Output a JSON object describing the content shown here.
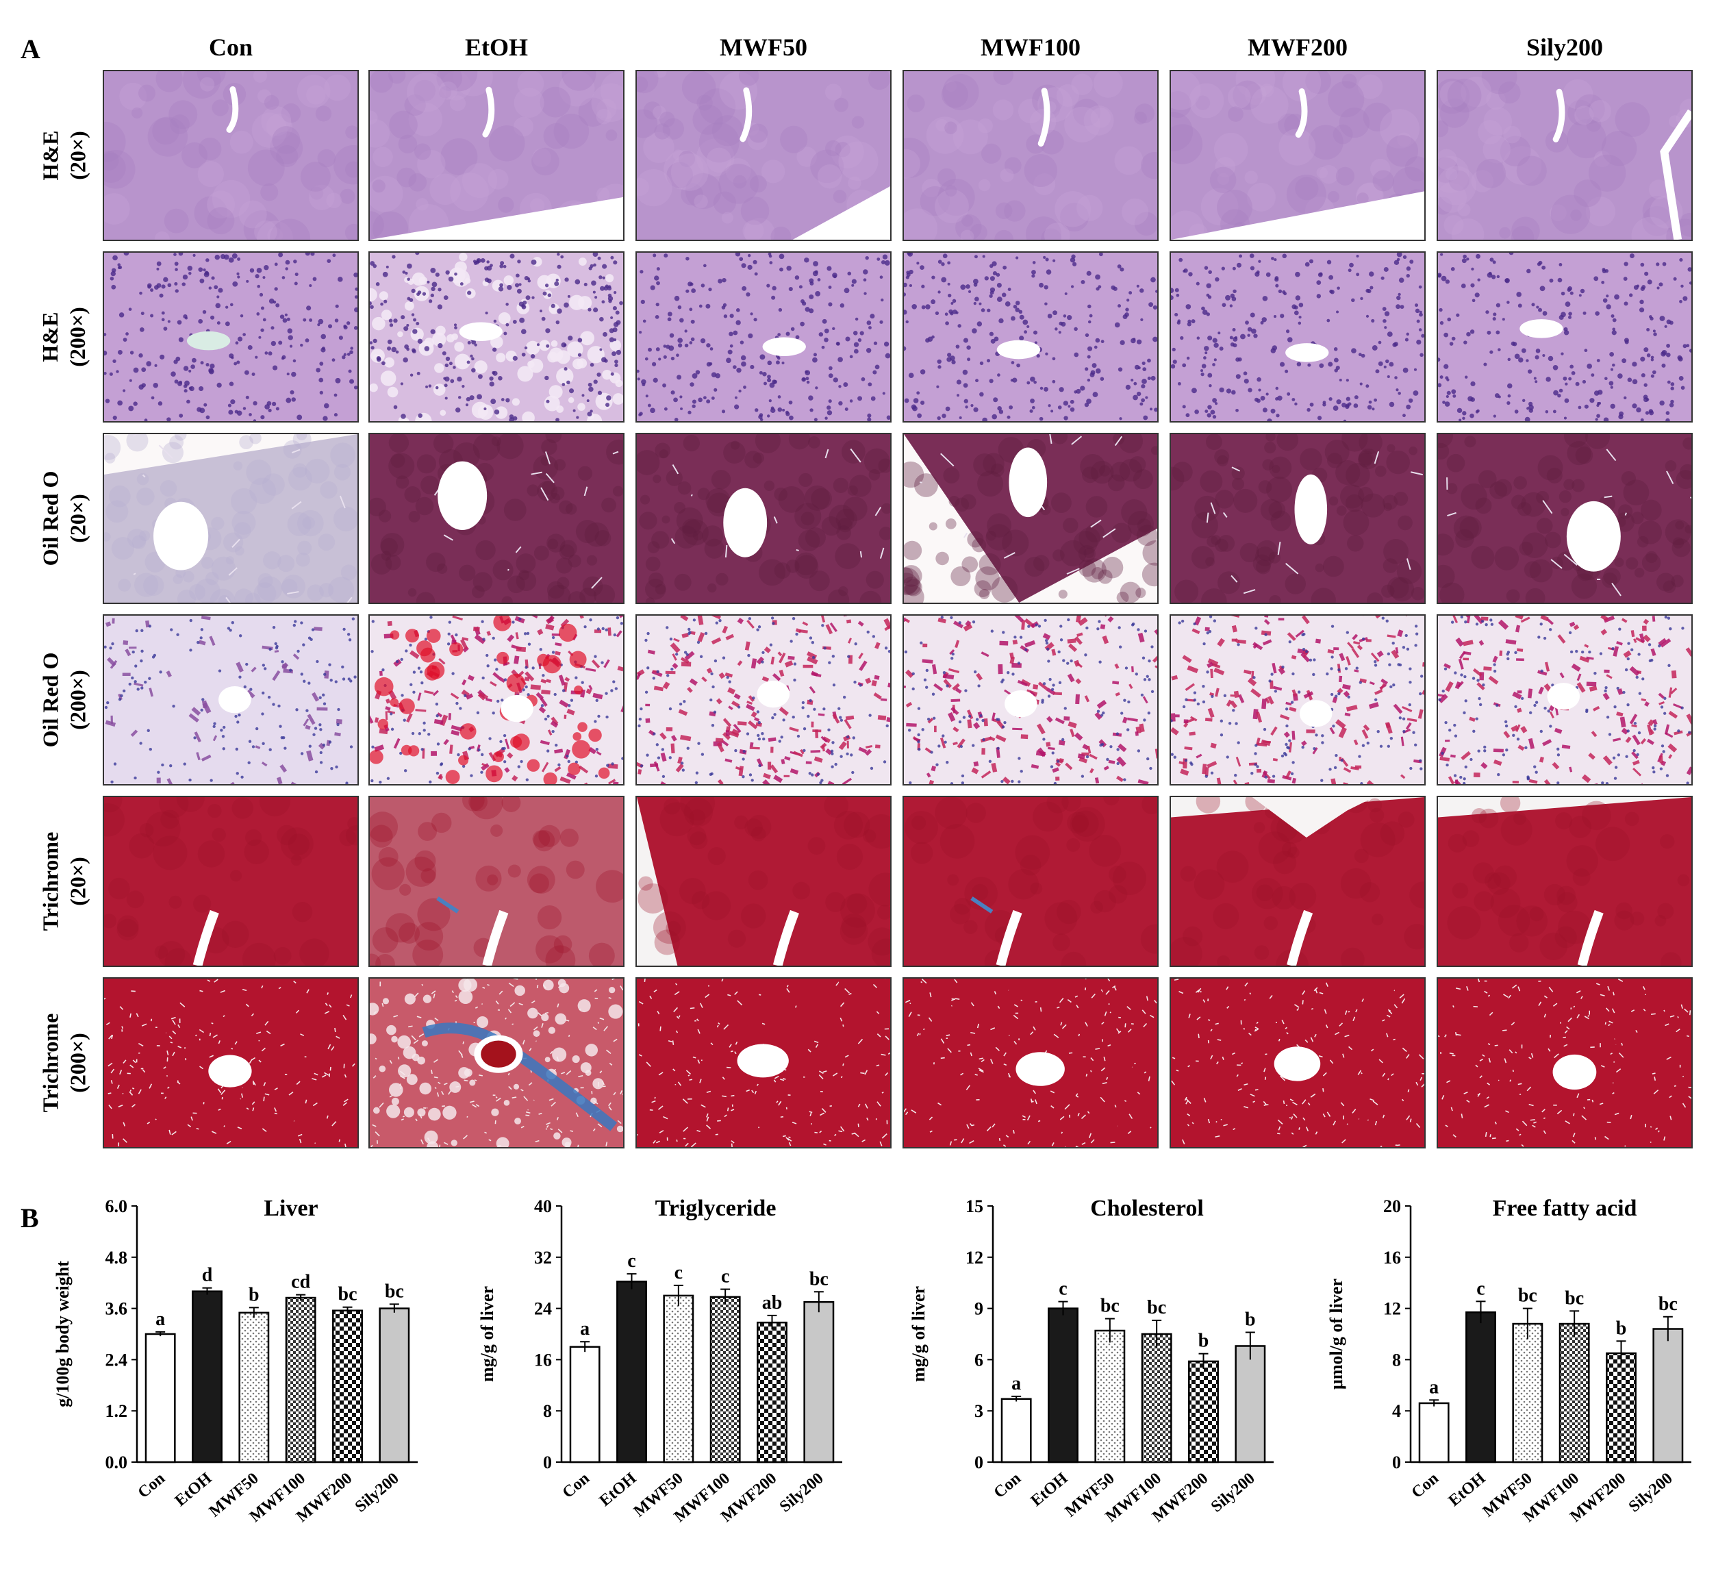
{
  "panel_a": {
    "label": "A",
    "columns": [
      "Con",
      "EtOH",
      "MWF50",
      "MWF100",
      "MWF200",
      "Sily200"
    ],
    "rows": [
      {
        "stain": "H&E",
        "mag": "(20×)",
        "style": "he20"
      },
      {
        "stain": "H&E",
        "mag": "(200×)",
        "style": "he200"
      },
      {
        "stain": "Oil Red O",
        "mag": "(20×)",
        "style": "oro20"
      },
      {
        "stain": "Oil Red O",
        "mag": "(200×)",
        "style": "oro200"
      },
      {
        "stain": "Trichrome",
        "mag": "(20×)",
        "style": "tri20"
      },
      {
        "stain": "Trichrome",
        "mag": "(200×)",
        "style": "tri200"
      }
    ],
    "colors": {
      "he_base": "#b48bc8",
      "he_nuclei": "#4b2b8a",
      "oro_low_base": "#7a2e57",
      "oro_high_base": "#c03a6a",
      "oro_lipid": "#d8203a",
      "tri_base": "#a9172e",
      "tri_collagen": "#3a78c0",
      "lumen": "#ffffff"
    }
  },
  "panel_b": {
    "label": "B",
    "chart_data": [
      {
        "type": "bar",
        "title": "Liver",
        "ylabel": "g/100g body weight",
        "categories": [
          "Con",
          "EtOH",
          "MWF50",
          "MWF100",
          "MWF200",
          "Sily200"
        ],
        "values": [
          3.0,
          4.0,
          3.5,
          3.85,
          3.55,
          3.6
        ],
        "errors": [
          0.05,
          0.08,
          0.12,
          0.07,
          0.08,
          0.1
        ],
        "letters": [
          "a",
          "d",
          "b",
          "cd",
          "bc",
          "bc"
        ],
        "ylim": [
          0,
          6.0
        ],
        "yticks": [
          "0.0",
          "1.2",
          "2.4",
          "3.6",
          "4.8",
          "6.0"
        ]
      },
      {
        "type": "bar",
        "title": "Triglyceride",
        "ylabel": "mg/g of liver",
        "categories": [
          "Con",
          "EtOH",
          "MWF50",
          "MWF100",
          "MWF200",
          "Sily200"
        ],
        "values": [
          18.0,
          28.2,
          26.0,
          25.8,
          21.8,
          25.0
        ],
        "errors": [
          0.8,
          1.2,
          1.6,
          1.2,
          1.1,
          1.6
        ],
        "letters": [
          "a",
          "c",
          "c",
          "c",
          "ab",
          "bc"
        ],
        "ylim": [
          0,
          40
        ],
        "yticks": [
          "0",
          "8",
          "16",
          "24",
          "32",
          "40"
        ]
      },
      {
        "type": "bar",
        "title": "Cholesterol",
        "ylabel": "mg/g of liver",
        "categories": [
          "Con",
          "EtOH",
          "MWF50",
          "MWF100",
          "MWF200",
          "Sily200"
        ],
        "values": [
          3.7,
          9.0,
          7.7,
          7.5,
          5.9,
          6.8
        ],
        "errors": [
          0.15,
          0.4,
          0.7,
          0.8,
          0.45,
          0.8
        ],
        "letters": [
          "a",
          "c",
          "bc",
          "bc",
          "b",
          "b"
        ],
        "ylim": [
          0,
          15
        ],
        "yticks": [
          "0",
          "3",
          "6",
          "9",
          "12",
          "15"
        ]
      },
      {
        "type": "bar",
        "title": "Free fatty acid",
        "ylabel": "μmol/g of liver",
        "categories": [
          "Con",
          "EtOH",
          "MWF50",
          "MWF100",
          "MWF200",
          "Sily200"
        ],
        "values": [
          4.6,
          11.7,
          10.8,
          10.8,
          8.5,
          10.4
        ],
        "errors": [
          0.25,
          0.85,
          1.2,
          1.0,
          0.95,
          0.95
        ],
        "letters": [
          "a",
          "c",
          "bc",
          "bc",
          "b",
          "bc"
        ],
        "ylim": [
          0,
          20
        ],
        "yticks": [
          "0",
          "4",
          "8",
          "12",
          "16",
          "20"
        ]
      }
    ],
    "bar_fills": [
      "white",
      "black",
      "dots",
      "checker-fine",
      "checker-coarse",
      "gray"
    ]
  }
}
